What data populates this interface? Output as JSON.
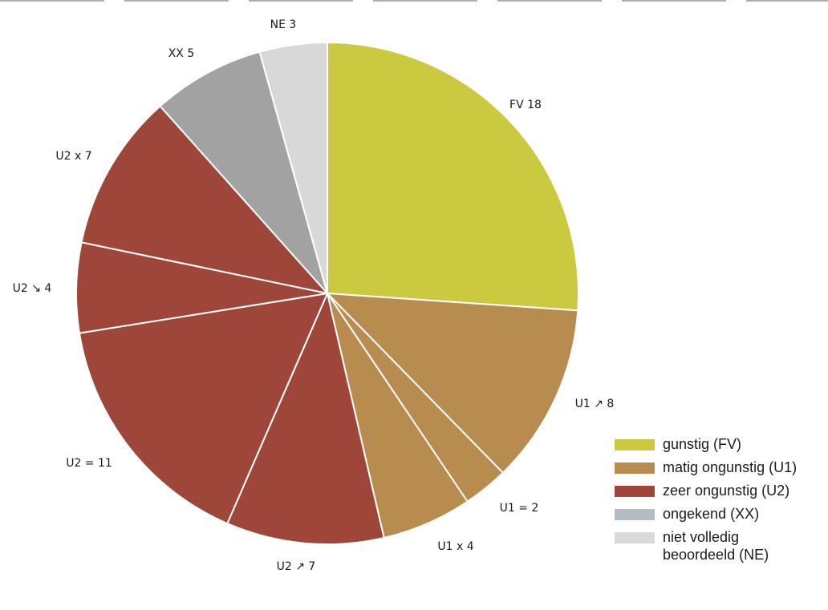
{
  "chart_data": {
    "type": "pie",
    "title": "",
    "start": "top",
    "direction": "clockwise",
    "slices": [
      {
        "label": "FV 18",
        "value": 18,
        "category": "FV"
      },
      {
        "label": "U1 ↗ 8",
        "value": 8,
        "category": "U1"
      },
      {
        "label": "U1 = 2",
        "value": 2,
        "category": "U1"
      },
      {
        "label": "U1 x 4",
        "value": 4,
        "category": "U1"
      },
      {
        "label": "U2 ↗ 7",
        "value": 7,
        "category": "U2"
      },
      {
        "label": "U2 = 11",
        "value": 11,
        "category": "U2"
      },
      {
        "label": "U2 ↘ 4",
        "value": 4,
        "category": "U2"
      },
      {
        "label": "U2 x 7",
        "value": 7,
        "category": "U2"
      },
      {
        "label": "XX 5",
        "value": 5,
        "category": "XX"
      },
      {
        "label": "NE 3",
        "value": 3,
        "category": "NE"
      }
    ],
    "legend": {
      "placement": "bottom-right",
      "entries": [
        {
          "category": "FV",
          "label": "gunstig (FV)",
          "color": "#cbc940"
        },
        {
          "category": "U1",
          "label": "matig ongunstig (U1)",
          "color": "#b88c4f"
        },
        {
          "category": "U2",
          "label": "zeer ongunstig (U2)",
          "color": "#9e4639"
        },
        {
          "category": "XX",
          "label": "ongekend (XX)",
          "color": "#b4bcc4"
        },
        {
          "category": "NE",
          "label": "niet volledig\nbeoordeeld (NE)",
          "color": "#d9d9d9"
        }
      ]
    },
    "slice_colors": {
      "FV": "#cbc940",
      "U1": "#b88c4f",
      "U2": "#9e4639",
      "XX": "#a2a2a2",
      "NE": "#d8d8d8"
    }
  }
}
